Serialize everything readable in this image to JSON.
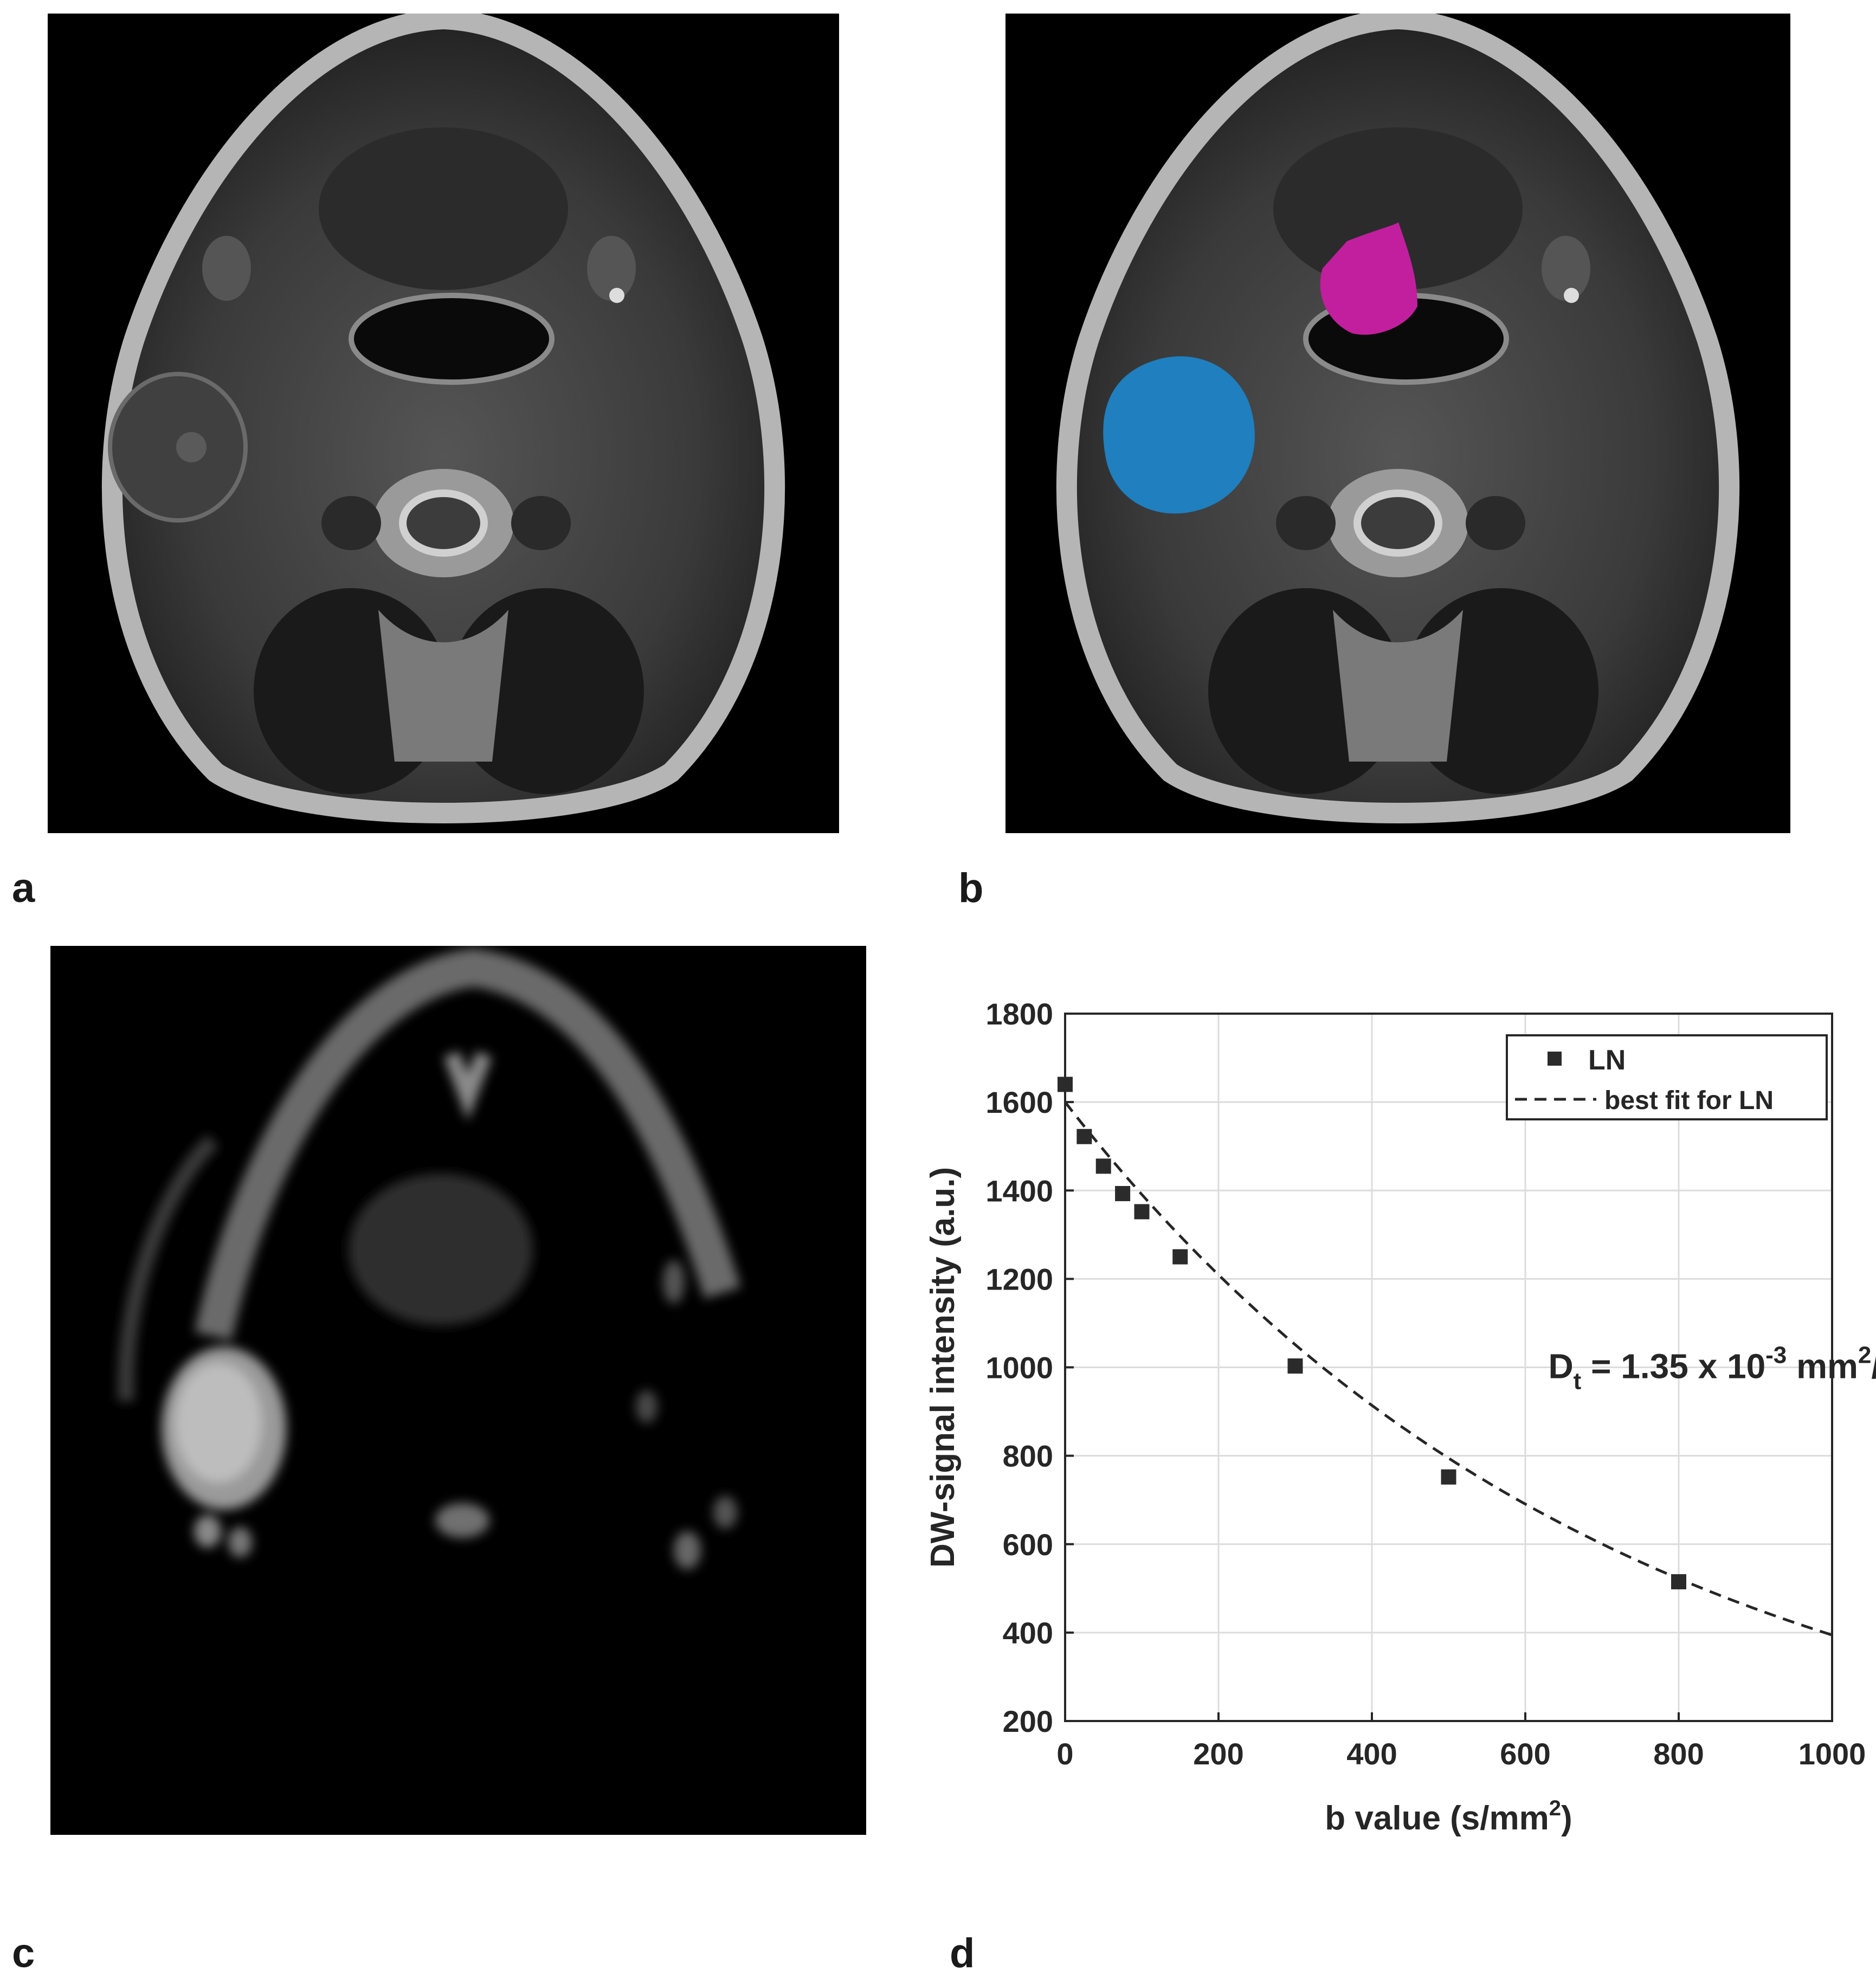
{
  "figure": {
    "panel_labels": {
      "a": "a",
      "b": "b",
      "c": "c",
      "d": "d"
    },
    "roi_colors": {
      "lymph_node": "#1f7fbf",
      "muscle_reference": "#c21f9e"
    }
  },
  "chart_data": {
    "type": "scatter",
    "xlabel": "b value (s/mm",
    "xlabel_sup": "2",
    "xlabel_end": ")",
    "ylabel": "DW-signal intensity (a.u.)",
    "xlim": [
      0,
      1000
    ],
    "ylim": [
      200,
      1800
    ],
    "xticks": [
      0,
      200,
      400,
      600,
      800,
      1000
    ],
    "yticks": [
      200,
      400,
      600,
      800,
      1000,
      1200,
      1400,
      1600,
      1800
    ],
    "grid": true,
    "legend_position": "top-right",
    "series": [
      {
        "name": "LN",
        "kind": "markers",
        "x": [
          0,
          25,
          50,
          75,
          100,
          150,
          300,
          500,
          800
        ],
        "y": [
          1640,
          1522,
          1455,
          1393,
          1352,
          1250,
          1003,
          752,
          515
        ]
      },
      {
        "name": "best fit for LN",
        "kind": "dashed-line",
        "model": {
          "S0": 1600,
          "Dt_mm2_per_s": 0.0014
        }
      }
    ],
    "annotation": {
      "prefix": "D",
      "subscript": "t",
      "middle": " = 1.35 x 10",
      "exponent": "-3",
      "unit": " mm",
      "unit_sup": "2",
      "unit_end": "/s",
      "at": {
        "x": 630,
        "y": 1000
      }
    }
  }
}
